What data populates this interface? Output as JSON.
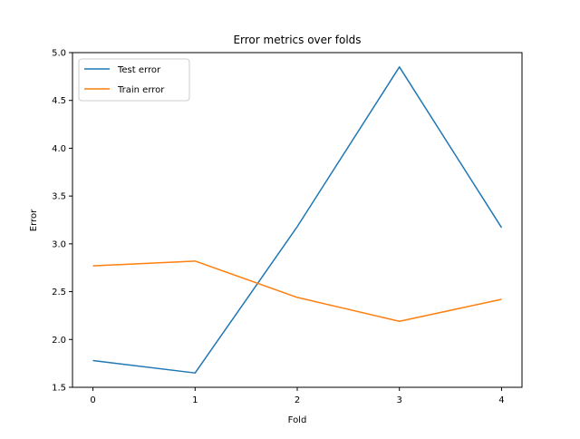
{
  "chart_data": {
    "type": "line",
    "title": "Error metrics over folds",
    "xlabel": "Fold",
    "ylabel": "Error",
    "x": [
      0,
      1,
      2,
      3,
      4
    ],
    "x_ticks": [
      "0",
      "1",
      "2",
      "3",
      "4"
    ],
    "y_ticks": [
      "1.5",
      "2.0",
      "2.5",
      "3.0",
      "3.5",
      "4.0",
      "4.5",
      "5.0"
    ],
    "xlim": [
      -0.2,
      4.2
    ],
    "ylim": [
      1.5,
      5.0
    ],
    "grid": false,
    "legend_position": "top-left",
    "series": [
      {
        "name": "Test error",
        "color": "#1f77b4",
        "values": [
          1.78,
          1.65,
          3.18,
          4.85,
          3.17
        ]
      },
      {
        "name": "Train error",
        "color": "#ff7f0e",
        "values": [
          2.77,
          2.82,
          2.44,
          2.19,
          2.42
        ]
      }
    ]
  }
}
